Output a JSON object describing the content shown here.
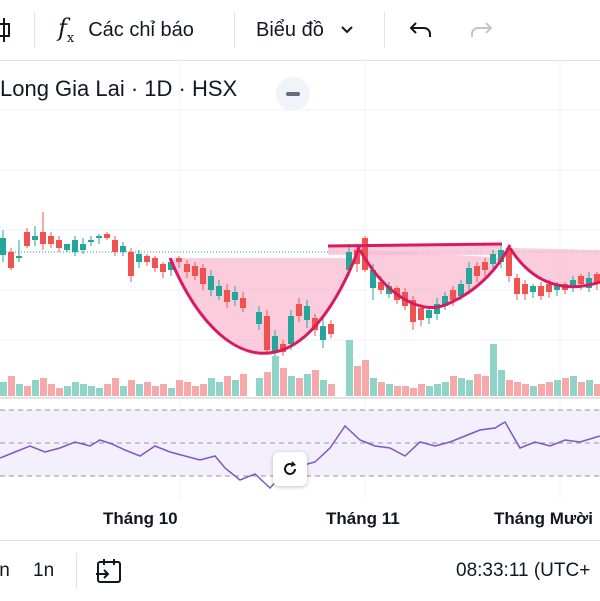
{
  "toolbar": {
    "indicators_label": "Các chỉ báo",
    "chart_type_label": "Biểu đồ"
  },
  "symbol": {
    "title": "Long Gia Lai · 1D · HSX"
  },
  "x_axis": {
    "labels": [
      "Tháng 10",
      "Tháng 11",
      "Tháng Mười"
    ]
  },
  "bottom_bar": {
    "range_partial": "ín",
    "range_1n": "1n",
    "time": "08:33:11 (UTC+"
  },
  "colors": {
    "up": "#26a69a",
    "down": "#ef5350",
    "pattern_fill": "#f8bbd0",
    "pattern_line": "#d81b60",
    "rsi_line": "#7e57c2",
    "rsi_band": "#f3effc"
  },
  "icons": [
    "indicator-fx-icon",
    "chevron-down-icon",
    "undo-icon",
    "redo-icon",
    "minus-icon",
    "reset-icon",
    "goto-date-icon"
  ]
}
